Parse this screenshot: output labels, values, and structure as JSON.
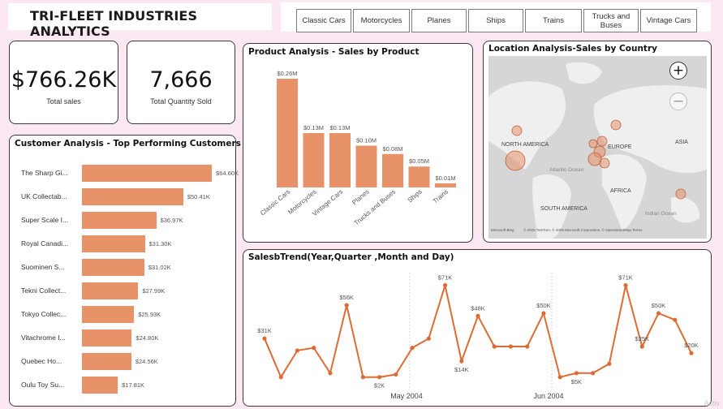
{
  "header": {
    "title": "TRI-FLEET INDUSTRIES ANALYTICS",
    "slicer_items": [
      "Classic Cars",
      "Motorcycles",
      "Planes",
      "Ships",
      "Trains",
      "Trucks and Buses",
      "Vintage Cars"
    ]
  },
  "kpis": {
    "total_sales": {
      "value": "$766.26K",
      "label": "Total sales"
    },
    "total_quantity": {
      "value": "7,666",
      "label": "Total Quantity Sold"
    }
  },
  "customers": {
    "title": "Customer Analysis - Top Performing Customers",
    "rows": [
      {
        "name": "The Sharp Gi...",
        "value": 64.6,
        "label": "$64.60K"
      },
      {
        "name": "UK Collectab...",
        "value": 50.41,
        "label": "$50.41K"
      },
      {
        "name": "Super Scale I...",
        "value": 36.97,
        "label": "$36.97K"
      },
      {
        "name": "Royal Canadi...",
        "value": 31.3,
        "label": "$31.30K"
      },
      {
        "name": "Suominen S...",
        "value": 31.02,
        "label": "$31.02K"
      },
      {
        "name": "Tekni Collect...",
        "value": 27.99,
        "label": "$27.99K"
      },
      {
        "name": "Tokyo Collec...",
        "value": 25.93,
        "label": "$25.93K"
      },
      {
        "name": "Vitachrome I...",
        "value": 24.8,
        "label": "$24.80K"
      },
      {
        "name": "Quebec Ho...",
        "value": 24.56,
        "label": "$24.56K"
      },
      {
        "name": "Oulu Toy Su...",
        "value": 17.81,
        "label": "$17.81K"
      }
    ]
  },
  "chart_data": [
    {
      "id": "product",
      "type": "bar",
      "title": "Product Analysis - Sales by Product",
      "categories": [
        "Classic Cars",
        "Motorcycles",
        "Vintage Cars",
        "Planes",
        "Trucks and Buses",
        "Ships",
        "Trains"
      ],
      "values": [
        0.26,
        0.13,
        0.13,
        0.1,
        0.08,
        0.05,
        0.01
      ],
      "data_labels": [
        "$0.26M",
        "$0.13M",
        "$0.13M",
        "$0.10M",
        "$0.08M",
        "$0.05M",
        "$0.01M"
      ],
      "unit": "$M",
      "color": "#e8926a"
    },
    {
      "id": "trend",
      "type": "line",
      "title": "SalesbTrend(Year,Quarter ,Month and Day)",
      "x_tick_labels": [
        "May 2004",
        "Jun 2004"
      ],
      "values_k": [
        31,
        2,
        22,
        24,
        5,
        56,
        2,
        2,
        4,
        24,
        31,
        71,
        14,
        48,
        25,
        25,
        25,
        50,
        2,
        5,
        5,
        12,
        71,
        25,
        50,
        45,
        20
      ],
      "data_labels": [
        {
          "index": 0,
          "label": "$31K"
        },
        {
          "index": 5,
          "label": "$56K"
        },
        {
          "index": 7,
          "label": "$2K"
        },
        {
          "index": 11,
          "label": "$71K"
        },
        {
          "index": 12,
          "label": "$14K"
        },
        {
          "index": 13,
          "label": "$48K"
        },
        {
          "index": 17,
          "label": "$50K"
        },
        {
          "index": 19,
          "label": "$5K"
        },
        {
          "index": 22,
          "label": "$71K"
        },
        {
          "index": 23,
          "label": "$25K"
        },
        {
          "index": 24,
          "label": "$50K"
        },
        {
          "index": 26,
          "label": "$20K"
        }
      ],
      "color": "#dd6b34"
    }
  ],
  "map": {
    "title": "Location Analysis-Sales by Country",
    "labels": {
      "north_america": "NORTH AMERICA",
      "europe": "EUROPE",
      "asia": "ASIA",
      "africa": "AFRICA",
      "south_america": "SOUTH AMERICA",
      "atlantic": "Atlantic Ocean",
      "indian": "Indian Ocean"
    },
    "attribution": "© 2025 TomTom, © 2025 Microsoft Corporation, © OpenStreetMap  Terms",
    "logo": "Microsoft Bing",
    "zoom_in": "+",
    "zoom_out": "−",
    "bubble_color": "#e8926a"
  },
  "watermark": "Activ"
}
